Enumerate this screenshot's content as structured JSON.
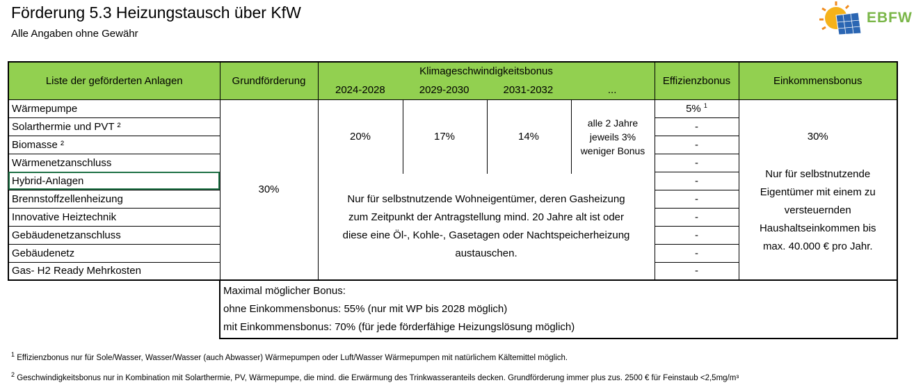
{
  "header": {
    "title": "Förderung 5.3 Heizungstausch über KfW",
    "subtitle": "Alle Angaben ohne Gewähr",
    "logo_text": "EBFW"
  },
  "table": {
    "col_headers": {
      "anlagen": "Liste der geförderten Anlagen",
      "grund": "Grundförderung",
      "klima": "Klimageschwindigkeitsbonus",
      "klima_years": [
        "2024-2028",
        "2029-2030",
        "2031-2032",
        "..."
      ],
      "effizienz": "Effizienzbonus",
      "einkommen": "Einkommensbonus"
    },
    "rows": [
      {
        "name": "Wärmepumpe",
        "effizienz": "5%",
        "sup": "1"
      },
      {
        "name": "Solarthermie und PVT ²",
        "effizienz": "-"
      },
      {
        "name": "Biomasse ²",
        "effizienz": "-"
      },
      {
        "name": "Wärmenetzanschluss",
        "effizienz": "-"
      },
      {
        "name": "Hybrid-Anlagen",
        "effizienz": "-"
      },
      {
        "name": "Brennstoffzellenheizung",
        "effizienz": "-"
      },
      {
        "name": "Innovative Heiztechnik",
        "effizienz": "-"
      },
      {
        "name": "Gebäudenetzanschluss",
        "effizienz": "-"
      },
      {
        "name": "Gebäudenetz",
        "effizienz": "-"
      },
      {
        "name": "Gas- H2 Ready Mehrkosten",
        "effizienz": "-"
      }
    ],
    "grund_value": "30%",
    "klima_values": [
      "20%",
      "17%",
      "14%"
    ],
    "klima_later": [
      "alle 2 Jahre",
      "jeweils 3%",
      "weniger Bonus"
    ],
    "klima_condition": [
      "Nur für selbstnutzende Wohneigentümer, deren Gasheizung",
      "zum Zeitpunkt der Antragstellung mind. 20 Jahre alt ist oder",
      "diese eine Öl-, Kohle-, Gasetagen oder Nachtspeicherheizung",
      "austauschen."
    ],
    "einkommen_value": "30%",
    "einkommen_note": [
      "Nur für selbstnutzende",
      "Eigentümer mit einem zu",
      "versteuernden",
      "Haushaltseinkommen bis",
      "max. 40.000 € pro Jahr."
    ]
  },
  "bonus": {
    "line1": "Maximal möglicher Bonus:",
    "line2": "ohne Einkommensbonus: 55% (nur mit WP bis 2028 möglich)",
    "line3": "mit Einkommensbonus: 70% (für jede förderfähige Heizungslösung möglich)"
  },
  "footnotes": {
    "f1_mark": "1",
    "f1": "Effizienzbonus nur für Sole/Wasser, Wasser/Wasser (auch Abwasser) Wärmepumpen oder Luft/Wasser Wärmepumpen mit natürlichem Kältemittel möglich.",
    "f2_mark": "2",
    "f2": "Geschwindigkeitsbonus nur in Kombination mit Solarthermie, PV, Wärmepumpe, die mind. die Erwärmung des Trinkwasseranteils decken. Grundförderung immer plus zus. 2500 € für Feinstaub <2,5mg/m³"
  }
}
